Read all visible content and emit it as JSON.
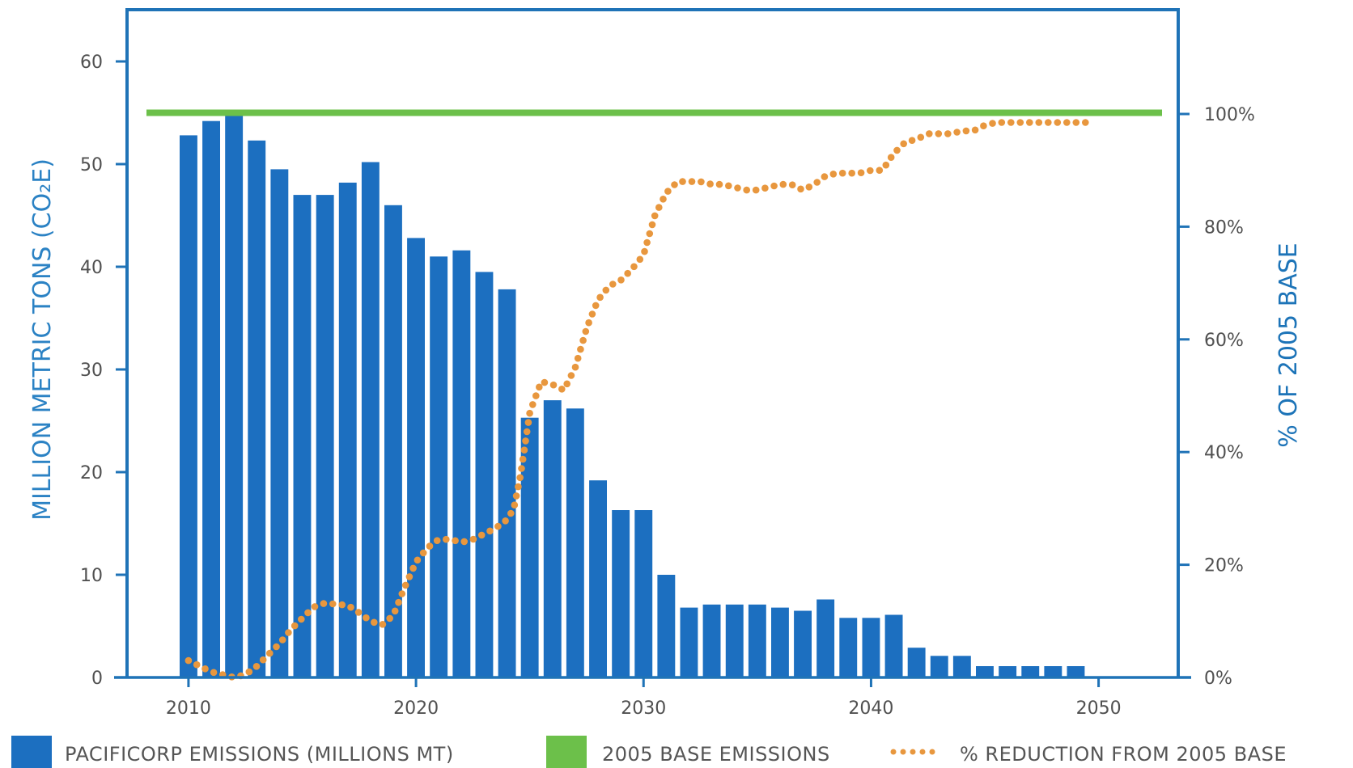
{
  "chart_data": {
    "type": "bar",
    "xlabel": "",
    "ylabel": "MILLION METRIC TONS (CO₂E)",
    "y2label": "% OF 2005 BASE",
    "xlim": [
      2007.3,
      2053.5
    ],
    "ylim": [
      0,
      60
    ],
    "y2lim": [
      0,
      100
    ],
    "x_ticks": [
      "2010",
      "2020",
      "2030",
      "2040",
      "2050"
    ],
    "y_ticks": [
      "0",
      "10",
      "20",
      "30",
      "40",
      "50",
      "60"
    ],
    "y2_ticks": [
      "0%",
      "20%",
      "40%",
      "60%",
      "80%",
      "100%"
    ],
    "legend_position": "bottom",
    "grid": false,
    "colors": {
      "bars": "#1c6fc0",
      "base_line": "#6cc04a",
      "reduction": "#e8973e",
      "frame": "#1f73b7",
      "left_title": "#2b82c4",
      "right_title": "#1d74b8"
    },
    "series": [
      {
        "name": "PACIFICORP EMISSIONS (MILLIONS MT)",
        "kind": "bar",
        "axis": "left",
        "x": [
          2010,
          2011,
          2012,
          2013,
          2014,
          2015,
          2016,
          2017,
          2018,
          2019,
          2020,
          2021,
          2022,
          2023,
          2024,
          2025,
          2026,
          2027,
          2028,
          2029,
          2030,
          2031,
          2032,
          2033,
          2034,
          2035,
          2036,
          2037,
          2038,
          2039,
          2040,
          2041,
          2042,
          2043,
          2044,
          2045,
          2046,
          2047,
          2048,
          2049
        ],
        "values": [
          52.8,
          54.2,
          55.0,
          52.3,
          49.5,
          47.0,
          47.0,
          48.2,
          50.2,
          46.0,
          42.8,
          41.0,
          41.6,
          39.5,
          37.8,
          25.3,
          27.0,
          26.2,
          19.2,
          16.3,
          16.3,
          10.0,
          6.8,
          7.1,
          7.1,
          7.1,
          6.8,
          6.5,
          7.6,
          5.8,
          5.8,
          6.1,
          2.9,
          2.1,
          2.1,
          1.1,
          1.1,
          1.1,
          1.1,
          1.1
        ]
      },
      {
        "name": "2005 BASE EMISSIONS",
        "kind": "line",
        "axis": "left",
        "x": [
          2007.3,
          2053.5
        ],
        "values": [
          55.0,
          55.0
        ]
      },
      {
        "name": "% REDUCTION FROM 2005 BASE",
        "kind": "dotted-line",
        "axis": "right",
        "x": [
          2010.0,
          2010.5,
          2011.0,
          2011.5,
          2012.0,
          2012.5,
          2013.0,
          2013.5,
          2014.0,
          2014.5,
          2015.0,
          2015.5,
          2016.0,
          2016.5,
          2017.0,
          2017.5,
          2018.0,
          2018.5,
          2019.0,
          2019.5,
          2020.0,
          2020.5,
          2021.0,
          2021.5,
          2022.0,
          2022.5,
          2023.0,
          2023.5,
          2024.0,
          2024.3,
          2024.6,
          2025.0,
          2025.5,
          2026.0,
          2026.5,
          2027.0,
          2027.5,
          2028.0,
          2028.5,
          2029.0,
          2029.5,
          2030.0,
          2030.5,
          2031.0,
          2031.5,
          2032.0,
          2032.5,
          2033.0,
          2033.5,
          2034.0,
          2034.5,
          2035.0,
          2035.5,
          2036.0,
          2036.5,
          2037.0,
          2037.5,
          2038.0,
          2038.5,
          2039.0,
          2039.5,
          2040.0,
          2040.5,
          2041.0,
          2041.5,
          2042.0,
          2042.5,
          2043.0,
          2043.5,
          2044.0,
          2044.5,
          2045.0,
          2045.5,
          2046.0,
          2046.5,
          2047.0,
          2047.5,
          2048.0,
          2048.5,
          2049.0,
          2049.5
        ],
        "values": [
          3.0,
          2.0,
          1.0,
          0.5,
          0.0,
          0.5,
          2.0,
          4.0,
          6.0,
          8.5,
          10.5,
          12.5,
          13.2,
          13.0,
          12.8,
          11.5,
          10.0,
          9.3,
          11.0,
          16.0,
          20.5,
          23.0,
          24.5,
          24.5,
          24.0,
          24.5,
          25.5,
          26.5,
          28.0,
          30.0,
          36.0,
          47.0,
          52.5,
          52.0,
          51.0,
          55.0,
          62.0,
          67.0,
          69.5,
          70.5,
          72.5,
          75.0,
          82.0,
          86.0,
          88.0,
          88.0,
          88.0,
          87.5,
          87.5,
          87.0,
          86.5,
          86.5,
          87.0,
          87.5,
          87.5,
          86.5,
          87.5,
          89.0,
          89.5,
          89.5,
          89.5,
          90.0,
          90.0,
          93.0,
          95.0,
          95.5,
          96.5,
          96.5,
          96.5,
          97.0,
          97.0,
          98.0,
          98.5,
          98.5,
          98.5,
          98.5,
          98.5,
          98.5,
          98.5,
          98.5,
          98.5
        ]
      }
    ]
  }
}
